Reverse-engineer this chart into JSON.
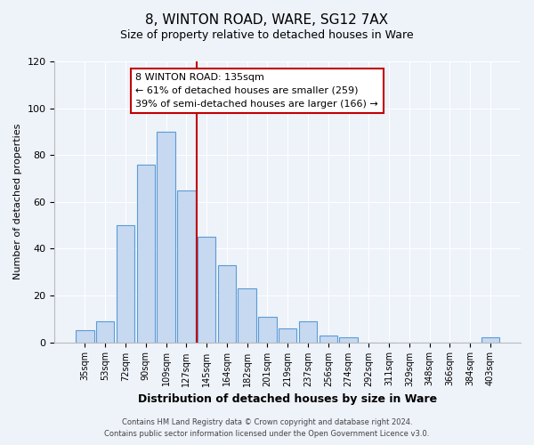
{
  "title": "8, WINTON ROAD, WARE, SG12 7AX",
  "subtitle": "Size of property relative to detached houses in Ware",
  "xlabel": "Distribution of detached houses by size in Ware",
  "ylabel": "Number of detached properties",
  "categories": [
    "35sqm",
    "53sqm",
    "72sqm",
    "90sqm",
    "109sqm",
    "127sqm",
    "145sqm",
    "164sqm",
    "182sqm",
    "201sqm",
    "219sqm",
    "237sqm",
    "256sqm",
    "274sqm",
    "292sqm",
    "311sqm",
    "329sqm",
    "348sqm",
    "366sqm",
    "384sqm",
    "403sqm"
  ],
  "values": [
    5,
    9,
    50,
    76,
    90,
    65,
    45,
    33,
    23,
    11,
    6,
    9,
    3,
    2,
    0,
    0,
    0,
    0,
    0,
    0,
    2
  ],
  "bar_color": "#c6d9f0",
  "bar_edge_color": "#5b9bd5",
  "vline_x_index": 5.5,
  "vline_color": "#c00000",
  "annotation_line1": "8 WINTON ROAD: 135sqm",
  "annotation_line2": "← 61% of detached houses are smaller (259)",
  "annotation_line3": "39% of semi-detached houses are larger (166) →",
  "annotation_box_edge_color": "#c00000",
  "ylim": [
    0,
    120
  ],
  "yticks": [
    0,
    20,
    40,
    60,
    80,
    100,
    120
  ],
  "footer_line1": "Contains HM Land Registry data © Crown copyright and database right 2024.",
  "footer_line2": "Contains public sector information licensed under the Open Government Licence v3.0.",
  "background_color": "#eef2f9",
  "plot_background_color": "#eef2f9",
  "grid_color": "#ffffff",
  "title_fontsize": 11,
  "subtitle_fontsize": 9,
  "xlabel_fontsize": 9,
  "ylabel_fontsize": 8,
  "tick_fontsize": 8,
  "annotation_fontsize": 8
}
